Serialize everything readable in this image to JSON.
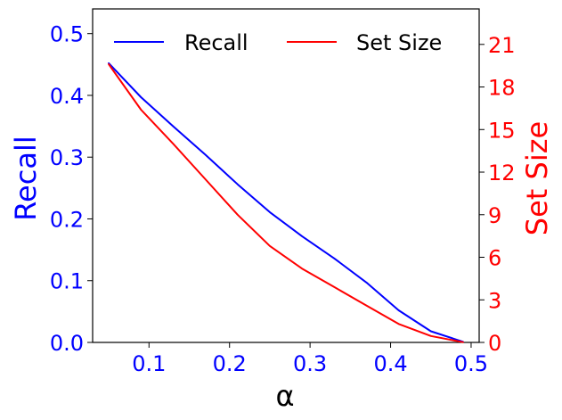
{
  "chart_data": {
    "type": "line",
    "xlabel": "α",
    "ylabel_left": "Recall",
    "ylabel_right": "Set Size",
    "x_ticks": [
      "0.1",
      "0.2",
      "0.3",
      "0.4",
      "0.5"
    ],
    "y_left_ticks": [
      "0.0",
      "0.1",
      "0.2",
      "0.3",
      "0.4",
      "0.5"
    ],
    "y_right_ticks": [
      "0",
      "3",
      "6",
      "9",
      "12",
      "15",
      "18",
      "21"
    ],
    "xlim": [
      0.03,
      0.51
    ],
    "ylim_left": [
      0.0,
      0.54
    ],
    "ylim_right": [
      0,
      23.5
    ],
    "grid": false,
    "legend_position": "top",
    "series": [
      {
        "name": "Recall",
        "axis": "left",
        "color": "#0000ff",
        "x": [
          0.05,
          0.09,
          0.13,
          0.17,
          0.21,
          0.25,
          0.29,
          0.33,
          0.37,
          0.41,
          0.45,
          0.49
        ],
        "y": [
          0.452,
          0.397,
          0.35,
          0.304,
          0.256,
          0.211,
          0.172,
          0.136,
          0.097,
          0.052,
          0.018,
          0.001
        ]
      },
      {
        "name": "Set Size",
        "axis": "right",
        "color": "#ff0000",
        "x": [
          0.05,
          0.09,
          0.13,
          0.17,
          0.21,
          0.25,
          0.29,
          0.33,
          0.37,
          0.41,
          0.45,
          0.49
        ],
        "y": [
          19.6,
          16.4,
          14.0,
          11.5,
          9.0,
          6.8,
          5.2,
          3.9,
          2.6,
          1.3,
          0.45,
          0.02
        ]
      }
    ]
  }
}
